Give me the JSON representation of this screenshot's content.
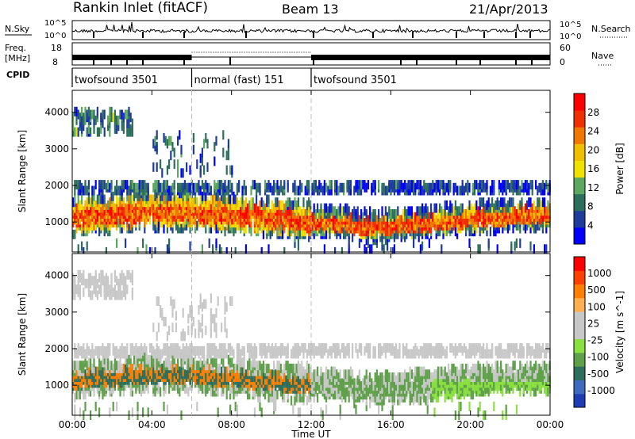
{
  "header": {
    "title": "Rankin Inlet (fitACF)",
    "beam": "Beam 13",
    "date": "21/Apr/2013"
  },
  "status_panels": {
    "nsky_label": "N.Sky",
    "nsearch_label": "N.Search",
    "nsky_ticks": [
      "10^5",
      "10^0"
    ],
    "nsearch_ticks": [
      "10^5",
      "10^0"
    ],
    "freq_label_1": "Freq.",
    "freq_label_2": "[MHz]",
    "freq_ticks": [
      "18",
      "8"
    ],
    "nave_label": "Nave",
    "nave_ticks": [
      "60",
      "0"
    ],
    "cpid_label": "CPID"
  },
  "cpid_segments": [
    {
      "label": "twofsound 3501",
      "start": 0,
      "end": 6
    },
    {
      "label": "normal (fast) 151",
      "start": 6,
      "end": 12
    },
    {
      "label": "twofsound 3501",
      "start": 12,
      "end": 24
    }
  ],
  "chart_data": [
    {
      "type": "heatmap",
      "ylabel": "Slant Range [km]",
      "ylim": [
        180,
        4600
      ],
      "yticks": [
        "4000",
        "3000",
        "2000",
        "1000"
      ],
      "ytick_values": [
        4000,
        3000,
        2000,
        1000
      ],
      "colorbar": {
        "label": "Power [dB]",
        "ticks": [
          "28",
          "24",
          "20",
          "16",
          "12",
          "8",
          "4"
        ],
        "colors": [
          "#0000ff",
          "#1e3c9c",
          "#2e6e5c",
          "#5da860",
          "#f2e200",
          "#f0c000",
          "#f07800",
          "#f03000",
          "#ff0000"
        ]
      }
    },
    {
      "type": "heatmap",
      "ylabel": "Slant Range [km]",
      "ylim": [
        180,
        4600
      ],
      "yticks": [
        "4000",
        "3000",
        "2000",
        "1000"
      ],
      "ytick_values": [
        4000,
        3000,
        2000,
        1000
      ],
      "colorbar": {
        "label": "Velocity [m s^-1]",
        "ticks": [
          "1000",
          "500",
          "100",
          "25",
          "-25",
          "-100",
          "-500",
          "-1000"
        ],
        "colors": [
          "#1e3cb4",
          "#3e6ac0",
          "#2e6e5c",
          "#5fa04a",
          "#8ae040",
          "#c8c8c8",
          "#c8c8c8",
          "#ffb050",
          "#ff8000",
          "#ff4000",
          "#ff0000"
        ]
      }
    }
  ],
  "x_axis": {
    "xlabel": "Time UT",
    "xlim": [
      0,
      24
    ],
    "ticks": [
      "00:00",
      "04:00",
      "08:00",
      "12:00",
      "16:00",
      "20:00",
      "00:00"
    ],
    "tick_hours": [
      0,
      4,
      8,
      12,
      16,
      20,
      24
    ]
  }
}
